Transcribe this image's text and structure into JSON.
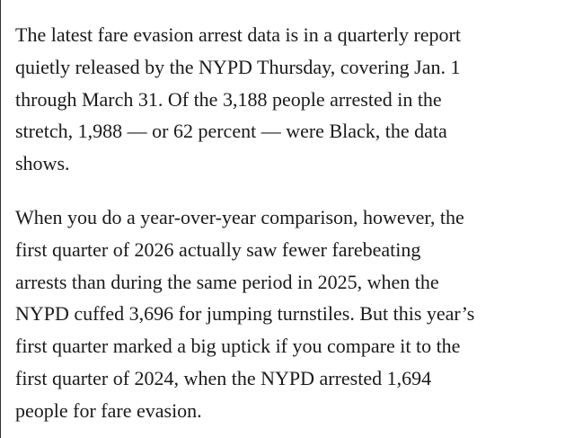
{
  "paragraphs": [
    {
      "lines": [
        "The latest fare evasion arrest data is in a quarterly report",
        "quietly released by the NYPD Thursday, covering Jan. 1",
        "through March 31. Of the 3,188 people arrested in the",
        "stretch, 1,988 — or 62 percent — were Black, the data",
        "shows."
      ]
    },
    {
      "lines": [
        "When you do a year-over-year comparison, however, the",
        "first quarter of 2026 actually saw fewer farebeating",
        "arrests than during the same period in 2025, when the",
        "NYPD cuffed 3,696 for jumping turnstiles. But this year’s",
        "first quarter marked a big uptick if you compare it to the",
        "first quarter of 2024, when the NYPD arrested 1,694",
        "people for fare evasion."
      ]
    }
  ]
}
